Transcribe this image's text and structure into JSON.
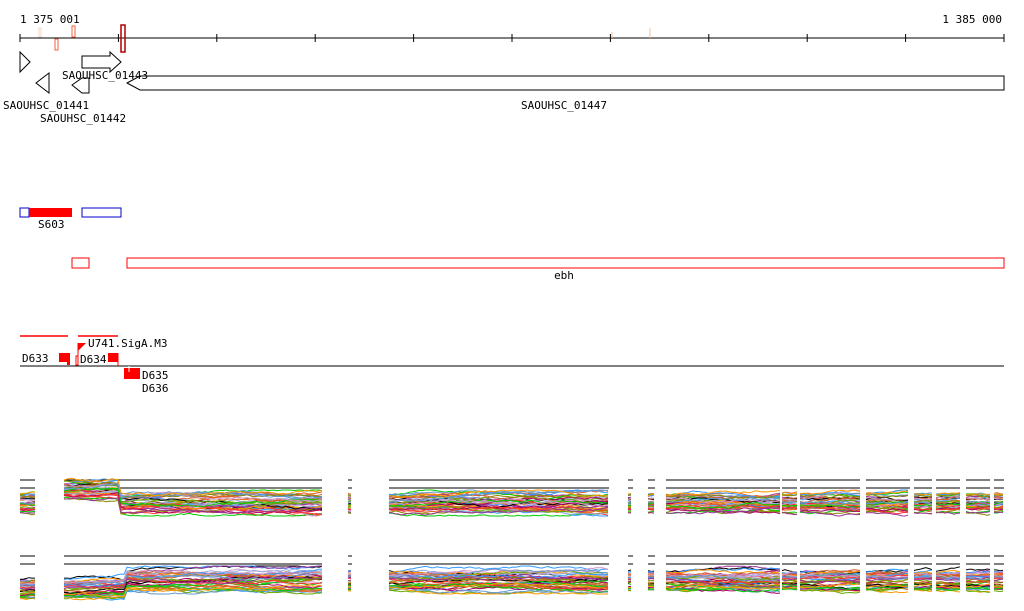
{
  "axis": {
    "start_label": "1 375 001",
    "end_label": "1 385 000"
  },
  "genes": [
    {
      "name": "SAOUHSC_01441",
      "strand": "+"
    },
    {
      "name": "SAOUHSC_01442",
      "strand": "-"
    },
    {
      "name": "SAOUHSC_01443",
      "strand": "+"
    },
    {
      "name": "SAOUHSC_01447",
      "strand": "-"
    }
  ],
  "features": {
    "s603": "S603",
    "ebh": "ebh"
  },
  "transcripts": {
    "d633": "D633",
    "d634": "D634",
    "u741": "U741.SigA.M3",
    "d635": "D635",
    "d636": "D636"
  },
  "colors": {
    "feature_red": "#ff0000",
    "outline_blue": "#0000cc",
    "marker_dark": "#b00000",
    "marker_salmon": "#f06040",
    "expression_palette": [
      "#e06020",
      "#cc6633",
      "#66aa00",
      "#aa0066",
      "#3399ff",
      "#888800",
      "#ff3333",
      "#993399",
      "#00cc00",
      "#cc99cc",
      "#6699cc",
      "#ff9900",
      "#000000",
      "#99aadd"
    ]
  }
}
